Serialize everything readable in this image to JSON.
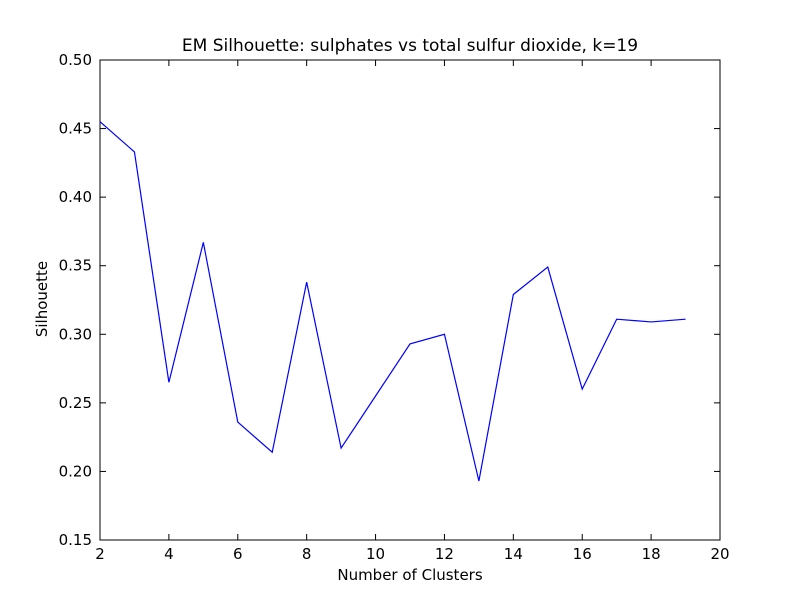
{
  "chart_data": {
    "type": "line",
    "title": "EM Silhouette: sulphates vs total sulfur dioxide, k=19",
    "xlabel": "Number of Clusters",
    "ylabel": "Silhouette",
    "xlim": [
      2,
      20
    ],
    "ylim": [
      0.15,
      0.5
    ],
    "xticks": [
      2,
      4,
      6,
      8,
      10,
      12,
      14,
      16,
      18,
      20
    ],
    "yticks": [
      0.15,
      0.2,
      0.25,
      0.3,
      0.35,
      0.4,
      0.45,
      0.5
    ],
    "xtick_labels": [
      "2",
      "4",
      "6",
      "8",
      "10",
      "12",
      "14",
      "16",
      "18",
      "20"
    ],
    "ytick_labels": [
      "0.15",
      "0.20",
      "0.25",
      "0.30",
      "0.35",
      "0.40",
      "0.45",
      "0.50"
    ],
    "grid": false,
    "legend": "none",
    "series": [
      {
        "color": "#0000ff",
        "x": [
          2,
          3,
          4,
          5,
          6,
          7,
          8,
          9,
          10,
          11,
          12,
          13,
          14,
          15,
          16,
          17,
          18,
          19
        ],
        "y": [
          0.455,
          0.433,
          0.265,
          0.367,
          0.236,
          0.214,
          0.338,
          0.217,
          0.255,
          0.293,
          0.3,
          0.193,
          0.329,
          0.349,
          0.26,
          0.311,
          0.309,
          0.311
        ]
      }
    ]
  }
}
